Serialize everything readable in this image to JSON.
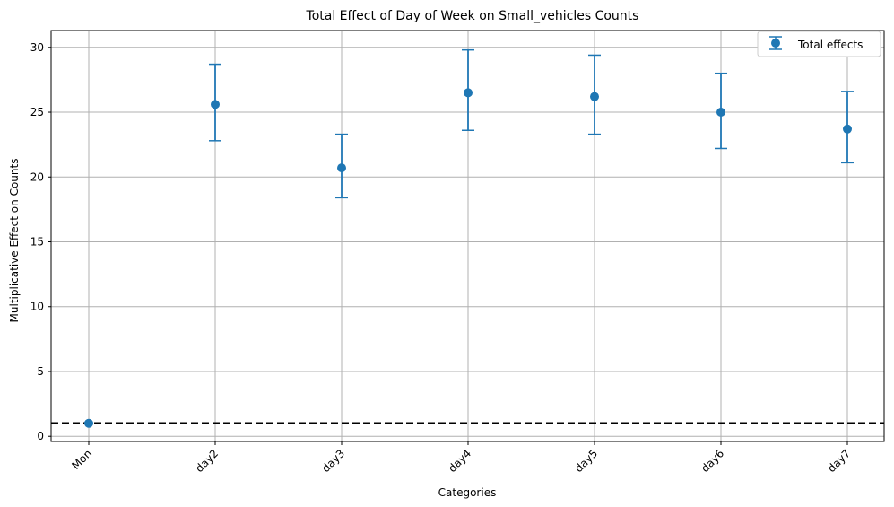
{
  "chart_data": {
    "type": "scatter",
    "title": "Total Effect of Day of Week on Small_vehicles Counts",
    "xlabel": "Categories",
    "ylabel": "Multiplicative Effect on Counts",
    "categories": [
      "Mon",
      "day2",
      "day3",
      "day4",
      "day5",
      "day6",
      "day7"
    ],
    "ylim": [
      -0.4,
      31.3
    ],
    "yticks": [
      0,
      5,
      10,
      15,
      20,
      25,
      30
    ],
    "series": [
      {
        "name": "Total effects",
        "values": [
          1.0,
          25.6,
          20.7,
          26.5,
          26.2,
          25.0,
          23.7
        ],
        "lower": [
          1.0,
          22.8,
          18.4,
          23.6,
          23.3,
          22.2,
          21.1
        ],
        "upper": [
          1.0,
          28.7,
          23.3,
          29.8,
          29.4,
          28.0,
          26.6
        ],
        "color": "#1f77b4"
      }
    ],
    "reference_line": {
      "y": 1,
      "style": "dashed",
      "color": "#000000"
    },
    "grid": true,
    "legend_position": "top-right",
    "xtick_rotation": 45
  }
}
